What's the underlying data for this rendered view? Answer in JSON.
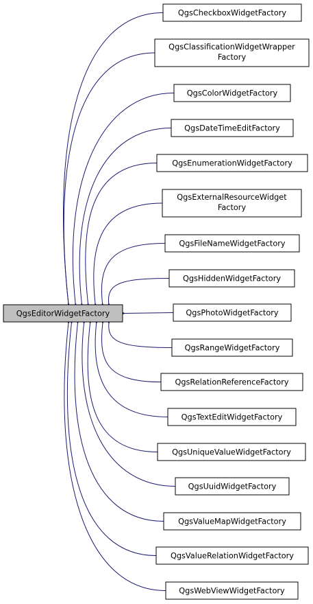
{
  "diagram": {
    "base": {
      "label": "QgsEditorWidgetFactory"
    },
    "derived": [
      {
        "lines": [
          "QgsCheckboxWidgetFactory"
        ]
      },
      {
        "lines": [
          "QgsClassificationWidgetWrapper",
          "Factory"
        ]
      },
      {
        "lines": [
          "QgsColorWidgetFactory"
        ]
      },
      {
        "lines": [
          "QgsDateTimeEditFactory"
        ]
      },
      {
        "lines": [
          "QgsEnumerationWidgetFactory"
        ]
      },
      {
        "lines": [
          "QgsExternalResourceWidget",
          "Factory"
        ]
      },
      {
        "lines": [
          "QgsFileNameWidgetFactory"
        ]
      },
      {
        "lines": [
          "QgsHiddenWidgetFactory"
        ]
      },
      {
        "lines": [
          "QgsPhotoWidgetFactory"
        ]
      },
      {
        "lines": [
          "QgsRangeWidgetFactory"
        ]
      },
      {
        "lines": [
          "QgsRelationReferenceFactory"
        ]
      },
      {
        "lines": [
          "QgsTextEditWidgetFactory"
        ]
      },
      {
        "lines": [
          "QgsUniqueValueWidgetFactory"
        ]
      },
      {
        "lines": [
          "QgsUuidWidgetFactory"
        ]
      },
      {
        "lines": [
          "QgsValueMapWidgetFactory"
        ]
      },
      {
        "lines": [
          "QgsValueRelationWidgetFactory"
        ]
      },
      {
        "lines": [
          "QgsWebViewWidgetFactory"
        ]
      }
    ],
    "colors": {
      "edge": "#191970",
      "base_fill": "#bfbfbf",
      "node_fill": "#ffffff",
      "node_stroke": "#000000"
    }
  }
}
